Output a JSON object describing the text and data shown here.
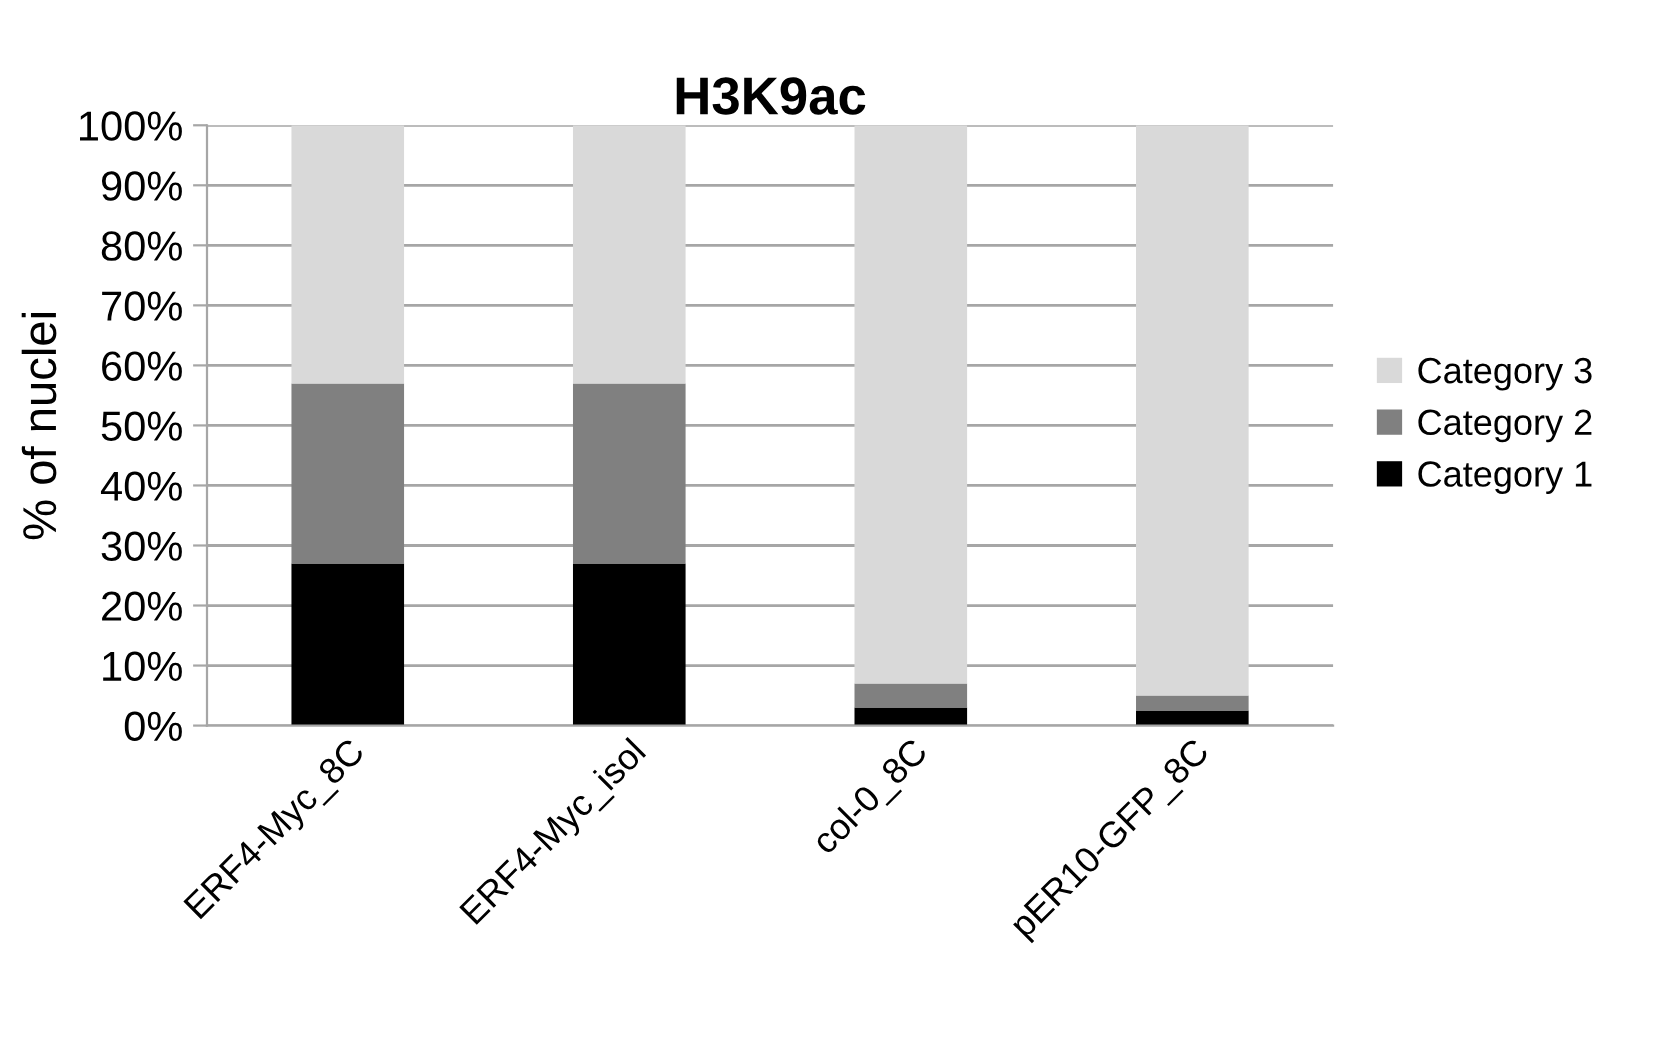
{
  "chart_data": {
    "type": "bar",
    "title": "H3K9ac",
    "ylabel": "% of nuclei",
    "stacked": true,
    "categories": [
      "ERF4-Myc_8C",
      "ERF4-Myc_isol",
      "col-0_8C",
      "pER10-GFP_8C"
    ],
    "series": [
      {
        "name": "Category 1",
        "color": "#000000",
        "values": [
          27,
          27,
          3,
          2.5
        ]
      },
      {
        "name": "Category 2",
        "color": "#808080",
        "values": [
          30,
          30,
          4,
          2.5
        ]
      },
      {
        "name": "Category 3",
        "color": "#d9d9d9",
        "values": [
          43,
          43,
          93,
          95
        ]
      }
    ],
    "ylim": [
      0,
      100
    ],
    "yticks": [
      {
        "value": 0,
        "label": "0%"
      },
      {
        "value": 10,
        "label": "10%"
      },
      {
        "value": 20,
        "label": "20%"
      },
      {
        "value": 30,
        "label": "30%"
      },
      {
        "value": 40,
        "label": "40%"
      },
      {
        "value": 50,
        "label": "50%"
      },
      {
        "value": 60,
        "label": "60%"
      },
      {
        "value": 70,
        "label": "70%"
      },
      {
        "value": 80,
        "label": "80%"
      },
      {
        "value": 90,
        "label": "90%"
      },
      {
        "value": 100,
        "label": "100%"
      }
    ],
    "grid": "y",
    "legend": "right"
  }
}
